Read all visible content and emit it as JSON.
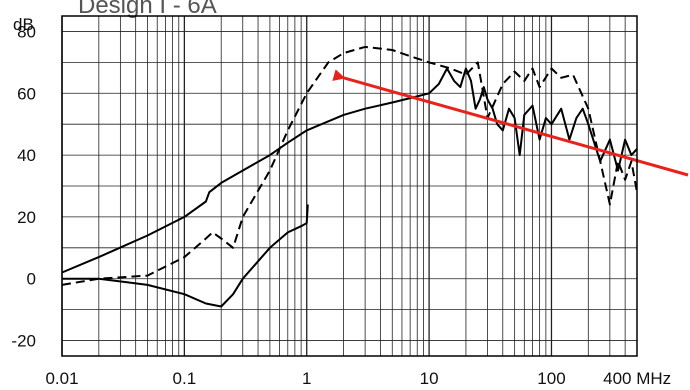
{
  "chart_data": {
    "type": "line",
    "title": "Design I - 6A",
    "y_unit": "dB",
    "x_unit": "MHz",
    "x_scale": "log",
    "xlim": [
      0.01,
      500
    ],
    "ylim": [
      -25,
      85
    ],
    "x_ticks": [
      {
        "value": 0.01,
        "label": "0.01"
      },
      {
        "value": 0.1,
        "label": "0.1"
      },
      {
        "value": 1,
        "label": "1"
      },
      {
        "value": 10,
        "label": "10"
      },
      {
        "value": 100,
        "label": "100"
      },
      {
        "value": 400,
        "label": "400 MHz"
      }
    ],
    "y_ticks": [
      {
        "value": 80,
        "label": "80"
      },
      {
        "value": 60,
        "label": "60"
      },
      {
        "value": 40,
        "label": "40"
      },
      {
        "value": 20,
        "label": "20"
      },
      {
        "value": 0,
        "label": "0"
      },
      {
        "value": -20,
        "label": "-20"
      }
    ],
    "grid": true,
    "series": [
      {
        "style": "solid",
        "color": "#000000",
        "x": [
          0.01,
          0.02,
          0.05,
          0.1,
          0.15,
          0.16,
          0.2,
          0.3,
          0.5,
          0.7,
          1,
          2,
          3,
          5,
          8,
          10,
          12,
          14,
          16,
          18,
          20,
          22,
          24,
          26,
          28,
          30,
          33,
          36,
          40,
          45,
          50,
          55,
          60,
          70,
          80,
          90,
          100,
          120,
          140,
          160,
          180,
          200,
          250,
          300,
          350,
          400,
          450,
          500
        ],
        "y": [
          2,
          7,
          14,
          20,
          25,
          28,
          31,
          35,
          40,
          44,
          48,
          53,
          55,
          57,
          59,
          60,
          63,
          68,
          64,
          62,
          68,
          64,
          55,
          58,
          62,
          58,
          55,
          50,
          48,
          55,
          52,
          40,
          53,
          56,
          45,
          52,
          50,
          55,
          45,
          52,
          55,
          50,
          38,
          45,
          35,
          45,
          40,
          42
        ]
      },
      {
        "style": "dashed",
        "color": "#000000",
        "x": [
          0.01,
          0.02,
          0.05,
          0.1,
          0.15,
          0.17,
          0.2,
          0.25,
          0.3,
          0.5,
          0.7,
          1,
          1.5,
          2,
          3,
          5,
          7,
          10,
          15,
          20,
          25,
          30,
          40,
          50,
          60,
          70,
          80,
          100,
          120,
          150,
          200,
          250,
          300,
          350,
          400,
          450,
          500
        ],
        "y": [
          -2,
          0,
          1,
          7,
          13,
          15,
          13,
          10,
          20,
          35,
          48,
          60,
          70,
          73,
          75,
          74,
          72,
          70,
          68,
          66,
          70,
          52,
          63,
          67,
          64,
          68,
          62,
          68,
          65,
          66,
          55,
          38,
          24,
          38,
          32,
          38,
          28
        ]
      },
      {
        "style": "solid",
        "color": "#000000",
        "x": [
          0.01,
          0.02,
          0.05,
          0.1,
          0.15,
          0.2,
          0.25,
          0.3,
          0.5,
          0.7,
          0.9,
          1.0,
          1.02
        ],
        "y": [
          0,
          0,
          -2,
          -5,
          -8,
          -9,
          -5,
          0,
          10,
          15,
          17,
          18,
          24
        ]
      }
    ],
    "annotations": [
      {
        "type": "arrow",
        "color": "#e8231b",
        "from": [
          400,
          33
        ],
        "to": [
          2,
          65
        ]
      }
    ]
  }
}
